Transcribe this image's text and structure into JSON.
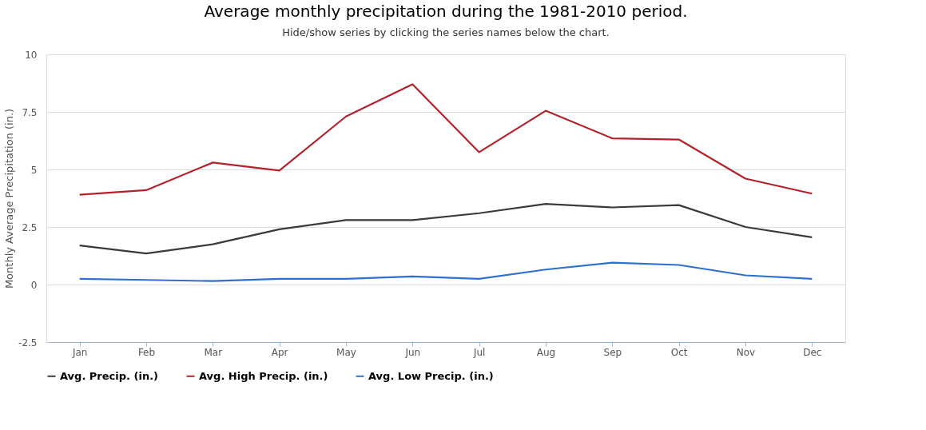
{
  "chart_data": {
    "type": "line",
    "title": "Average monthly precipitation during the 1981-2010 period.",
    "subtitle": "Hide/show series by clicking the series names below the chart.",
    "ylabel": "Monthly Average Precipitation (in.)",
    "categories": [
      "Jan",
      "Feb",
      "Mar",
      "Apr",
      "May",
      "Jun",
      "Jul",
      "Aug",
      "Sep",
      "Oct",
      "Nov",
      "Dec"
    ],
    "series": [
      {
        "name": "Avg. Precip. (in.)",
        "color": "#3a3a3a",
        "values": [
          1.7,
          1.35,
          1.75,
          2.4,
          2.8,
          2.8,
          3.1,
          3.5,
          3.35,
          3.45,
          2.5,
          2.05
        ]
      },
      {
        "name": "Avg. High Precip. (in.)",
        "color": "#b3222a",
        "values": [
          3.9,
          4.1,
          5.3,
          4.95,
          7.3,
          8.7,
          5.75,
          7.55,
          6.35,
          6.3,
          4.6,
          3.95
        ]
      },
      {
        "name": "Avg. Low Precip. (in.)",
        "color": "#2f6fd0",
        "values": [
          0.25,
          0.2,
          0.15,
          0.25,
          0.25,
          0.35,
          0.25,
          0.65,
          0.95,
          0.85,
          0.4,
          0.25
        ]
      }
    ],
    "ylim": [
      -2.5,
      10
    ],
    "yticks": [
      -2.5,
      0,
      2.5,
      5,
      7.5,
      10
    ],
    "grid": "y",
    "legend": "bottom",
    "marker": "none",
    "line_style": "solid"
  }
}
